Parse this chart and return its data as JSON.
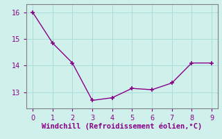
{
  "x": [
    0,
    1,
    2,
    3,
    4,
    5,
    6,
    7,
    8,
    9
  ],
  "y": [
    16.0,
    14.85,
    14.1,
    12.7,
    12.8,
    13.15,
    13.1,
    13.35,
    14.1,
    14.1
  ],
  "line_color": "#880088",
  "marker": "+",
  "marker_size": 5,
  "marker_linewidth": 1.2,
  "linewidth": 1.0,
  "linestyle": "-",
  "xlabel": "Windchill (Refroidissement éolien,°C)",
  "xlabel_fontsize": 7.5,
  "xlim": [
    -0.3,
    9.3
  ],
  "ylim": [
    12.4,
    16.3
  ],
  "yticks": [
    13,
    14,
    15,
    16
  ],
  "xticks": [
    0,
    1,
    2,
    3,
    4,
    5,
    6,
    7,
    8,
    9
  ],
  "background_color": "#cff0eb",
  "grid_color": "#aaddd8",
  "axis_color": "#808080",
  "tick_color": "#880088",
  "label_color": "#880088"
}
